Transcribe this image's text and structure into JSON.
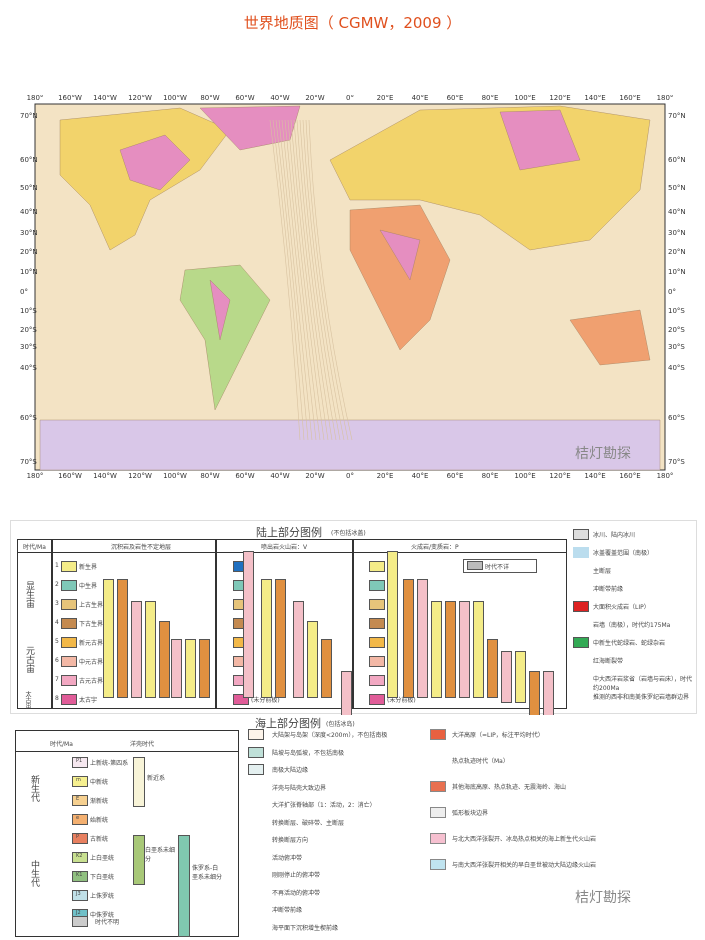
{
  "title": "世界地质图（ CGMW，2009 ）",
  "map": {
    "lon_labels": [
      "180°",
      "160°W",
      "140°W",
      "120°W",
      "100°W",
      "80°W",
      "60°W",
      "40°W",
      "20°W",
      "0°",
      "20°E",
      "40°E",
      "60°E",
      "80°E",
      "100°E",
      "120°E",
      "140°E",
      "160°E",
      "180°"
    ],
    "lat_labels": [
      "70°N",
      "60°N",
      "50°N",
      "40°N",
      "30°N",
      "20°N",
      "10°N",
      "0°",
      "10°S",
      "20°S",
      "30°S",
      "40°S",
      "60°S",
      "70°S"
    ],
    "ocean_color": "#f3e3c4",
    "land_colors": [
      "#f2d36b",
      "#e58ec0",
      "#b8d98a",
      "#f0a070",
      "#d9c7e8"
    ],
    "watermark": "桔灯勘探"
  },
  "land_legend": {
    "title": "陆上部分图例",
    "subtitle": "(不包括冰盖)",
    "col_age": "时代/Ma",
    "col1": "沉积岩及岩性不定地层",
    "col2": "喷出岩火山岩：V",
    "col3": "火成岩/变质岩：P",
    "eons": [
      "显生宙",
      "元古宙",
      "太古宙"
    ],
    "units": [
      {
        "n": "1",
        "label": "新生界",
        "color": "#f4ec88"
      },
      {
        "n": "2",
        "label": "中生界",
        "color": "#7fc8b8"
      },
      {
        "n": "3",
        "label": "上古生界",
        "color": "#e6c47a"
      },
      {
        "n": "4",
        "label": "下古生界",
        "color": "#c48a50"
      },
      {
        "n": "5",
        "label": "新元古界",
        "color": "#f2b848"
      },
      {
        "n": "6",
        "label": "中元古界",
        "color": "#f3b8a6"
      },
      {
        "n": "7",
        "label": "古元古界",
        "color": "#f2a8c2"
      },
      {
        "n": "8",
        "label": "太古宇",
        "color": "#e05c98"
      }
    ],
    "v_first": "#2070c0",
    "undivided": "(未分前板)",
    "unknown_age": "时代不详",
    "side": [
      "冰川、陆内冰川",
      "冰盖覆盖范围（南极）",
      "主断层",
      "冲断带前缘",
      "大面积火成岩（LIP）",
      "岩墙（南极），时代约175Ma",
      "中新生代蛇绿岩、蛇绿杂岩",
      "红海断裂带",
      "中大西洋岩浆省（岩墙与岩床），时代约200Ma",
      "推测的西非和南美侏罗纪岩墙群边界"
    ]
  },
  "sea_legend": {
    "title": "海上部分图例",
    "subtitle": "(包括冰岛)",
    "col_age": "时代/Ma",
    "col_era": "洋壳时代",
    "eras": [
      "新生代",
      "中生代"
    ],
    "units": [
      {
        "code": "P1",
        "label": "上新统-第四系",
        "color": "#f6e8f0"
      },
      {
        "code": "m",
        "label": "中新统",
        "color": "#f6f090"
      },
      {
        "code": "E",
        "label": "渐新统",
        "color": "#f6d090"
      },
      {
        "code": "e",
        "label": "始新统",
        "color": "#f4b070"
      },
      {
        "code": "P",
        "label": "古新统",
        "color": "#e88060"
      },
      {
        "code": "K2",
        "label": "上白垩统",
        "color": "#c8e090"
      },
      {
        "code": "K1",
        "label": "下白垩统",
        "color": "#90c080"
      },
      {
        "code": "J3",
        "label": "上侏罗统",
        "color": "#c0e0e8"
      },
      {
        "code": "J2",
        "label": "中侏罗统",
        "color": "#70c0c8"
      }
    ],
    "groups": [
      "新近系",
      "白垩系未细分",
      "侏罗系-白垩系未细分"
    ],
    "unknown": "时代不明",
    "items_left": [
      "大陆架与岛架（深度<200m），不包括南极",
      "陆坡与岛弧坡，不包括南极",
      "南极大陆边缘",
      "洋壳与陆壳大致边界",
      "大洋扩张脊轴部（1：活动，2：消亡）",
      "转换断层、破碎带、主断层",
      "转换断层方向",
      "活动俯冲带",
      "刚刚停止的俯冲带",
      "不再活动的俯冲带",
      "冲断带前缘",
      "海平面下沉积增生楔前缘"
    ],
    "items_right": [
      "大洋高原（=LIP，标注平均时代）",
      "热点轨迹时代（Ma）",
      "其他海底高原、热点轨迹、无震海岭、海山",
      "弧形板块边界",
      "与北大西洋张裂开、冰岛热点相关的海上新生代火山岩",
      "与南大西洋张裂开相关的早白垩世被动大陆边缘火山岩"
    ],
    "watermark": "桔灯勘探"
  }
}
